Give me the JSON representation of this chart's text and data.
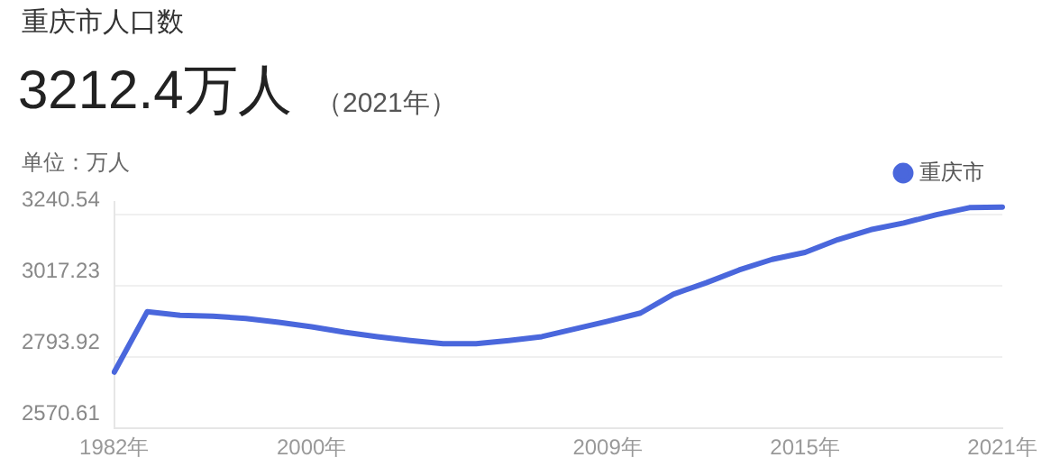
{
  "chart_data": {
    "type": "line",
    "title": "重庆市人口数",
    "subtitle": "3212.4万人",
    "annotations": [
      "（2021年）",
      "单位：万人"
    ],
    "categories": [
      "1982年",
      null,
      null,
      null,
      null,
      null,
      "2000年",
      null,
      null,
      null,
      null,
      null,
      null,
      null,
      null,
      "2009年",
      null,
      null,
      null,
      null,
      null,
      "2015年",
      null,
      null,
      null,
      null,
      null,
      "2021年"
    ],
    "series": [
      {
        "name": "重庆市",
        "color": "#4a67dc",
        "values": [
          2747,
          2936,
          2925,
          2922,
          2915,
          2903,
          2889,
          2872,
          2858,
          2846,
          2836,
          2836,
          2846,
          2858,
          2882,
          2906,
          2932,
          2991,
          3027,
          3067,
          3100,
          3122,
          3162,
          3193,
          3214,
          3240,
          3262,
          3264
        ]
      }
    ],
    "ylim": [
      2570.61,
      3280
    ],
    "yticks": [
      2570.61,
      2793.92,
      3017.23,
      3240.54
    ],
    "grid": "y",
    "legend": "top right",
    "marker": "none"
  }
}
